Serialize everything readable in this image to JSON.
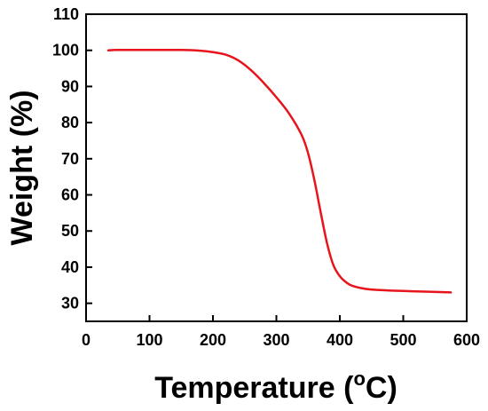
{
  "chart_data": {
    "type": "line",
    "title": "",
    "xlabel": "Temperature (",
    "xlabel_unit_sup": "o",
    "xlabel_unit_end": "C)",
    "ylabel": "Weight (%)",
    "xlim": [
      0,
      600
    ],
    "ylim": [
      25,
      110
    ],
    "xticks": [
      0,
      100,
      200,
      300,
      400,
      500,
      600
    ],
    "yticks": [
      30,
      40,
      50,
      60,
      70,
      80,
      90,
      100,
      110
    ],
    "grid": false,
    "legend": "none",
    "series": [
      {
        "color": "#e8141c",
        "x": [
          35,
          50,
          100,
          150,
          180,
          200,
          220,
          240,
          260,
          280,
          300,
          320,
          340,
          350,
          360,
          370,
          380,
          390,
          400,
          410,
          420,
          440,
          460,
          500,
          540,
          575
        ],
        "y": [
          100,
          100.1,
          100.1,
          100.1,
          99.9,
          99.5,
          98.8,
          97.2,
          94.5,
          91.0,
          87.0,
          82.5,
          76.5,
          71.5,
          64.0,
          55.0,
          46.5,
          40.5,
          37.5,
          35.8,
          34.8,
          34.0,
          33.7,
          33.4,
          33.2,
          33.0
        ]
      }
    ]
  }
}
